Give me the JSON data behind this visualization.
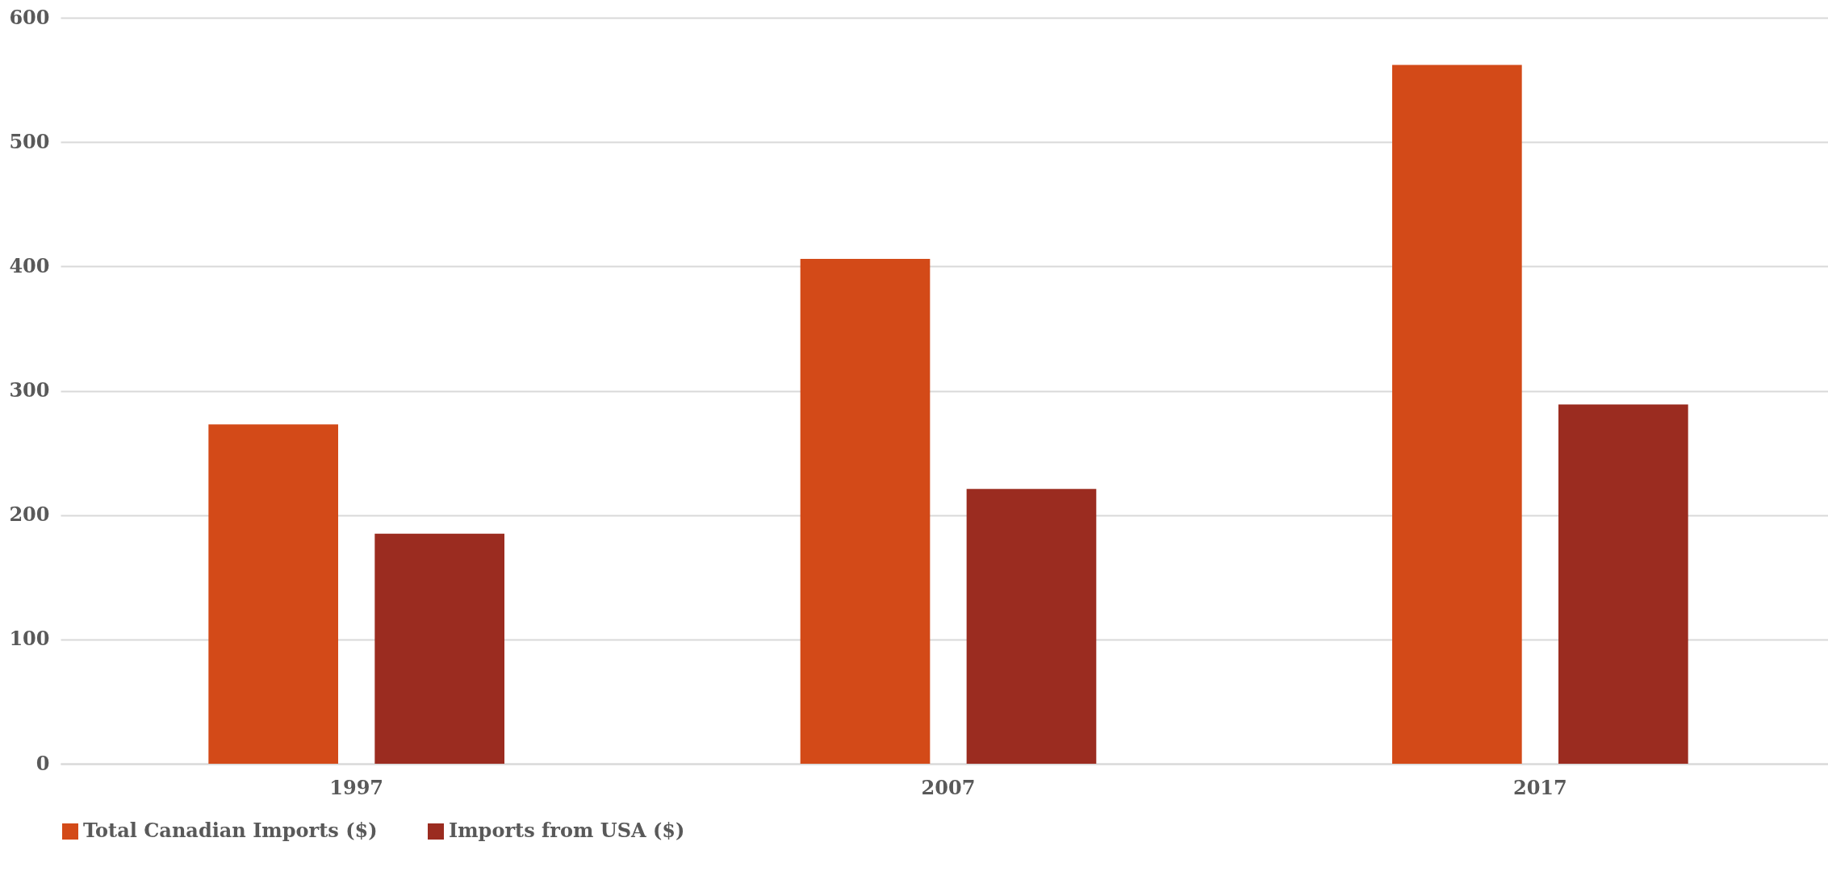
{
  "chart_data": {
    "type": "bar",
    "categories": [
      "1997",
      "2007",
      "2017"
    ],
    "series": [
      {
        "name": "Total Canadian Imports ($)",
        "color": "#d34a18",
        "values": [
          273,
          406,
          562
        ]
      },
      {
        "name": "Imports from USA ($)",
        "color": "#9b2c20",
        "values": [
          185,
          221,
          289
        ]
      }
    ],
    "ylim": [
      0,
      600
    ],
    "yticks": [
      0,
      100,
      200,
      300,
      400,
      500,
      600
    ],
    "grid": "y",
    "legend": "bottom"
  }
}
